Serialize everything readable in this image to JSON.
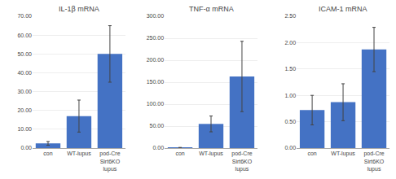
{
  "chart_data": [
    {
      "type": "bar",
      "title": "IL-1β mRNA",
      "categories": [
        "con",
        "WT-lupus",
        "pod-Cre\nSirt6KO\nlupus"
      ],
      "values": [
        2.5,
        17.0,
        50.0
      ],
      "errors": [
        1.0,
        8.5,
        15.0
      ],
      "color": "#4472C4",
      "ylim": [
        0,
        70
      ],
      "yticks": [
        {
          "value": 0,
          "label": "0.00"
        },
        {
          "value": 10,
          "label": "10.00"
        },
        {
          "value": 20,
          "label": "20.00"
        },
        {
          "value": 30,
          "label": "30.00"
        },
        {
          "value": 40,
          "label": "40.00"
        },
        {
          "value": 50,
          "label": "50.00"
        },
        {
          "value": 60,
          "label": "60.00"
        },
        {
          "value": 70,
          "label": "70.00"
        }
      ],
      "grid": true
    },
    {
      "type": "bar",
      "title": "TNF-α mRNA",
      "categories": [
        "con",
        "WT-lupus",
        "pod-Cre\nSirt6KO\nlupus"
      ],
      "values": [
        1.0,
        55.0,
        163.0
      ],
      "errors": [
        0.5,
        18.0,
        80.0
      ],
      "color": "#4472C4",
      "ylim": [
        0,
        300
      ],
      "yticks": [
        {
          "value": 0,
          "label": "0.00"
        },
        {
          "value": 50,
          "label": "50.00"
        },
        {
          "value": 100,
          "label": "100.00"
        },
        {
          "value": 150,
          "label": "150.00"
        },
        {
          "value": 200,
          "label": "200.00"
        },
        {
          "value": 250,
          "label": "250.00"
        },
        {
          "value": 300,
          "label": "300.00"
        }
      ],
      "grid": true
    },
    {
      "type": "bar",
      "title": "ICAM-1 mRNA",
      "categories": [
        "con",
        "WT-lupus",
        "pod-Cre\nSirt6KO\nlupus"
      ],
      "values": [
        0.72,
        0.87,
        1.87
      ],
      "errors": [
        0.28,
        0.35,
        0.42
      ],
      "color": "#4472C4",
      "ylim": [
        0,
        2.5
      ],
      "yticks": [
        {
          "value": 0,
          "label": "0.00"
        },
        {
          "value": 0.5,
          "label": "0.50"
        },
        {
          "value": 1,
          "label": "1.00"
        },
        {
          "value": 1.5,
          "label": "1.50"
        },
        {
          "value": 2,
          "label": "2.00"
        },
        {
          "value": 2.5,
          "label": "2.50"
        }
      ],
      "grid": true
    }
  ]
}
